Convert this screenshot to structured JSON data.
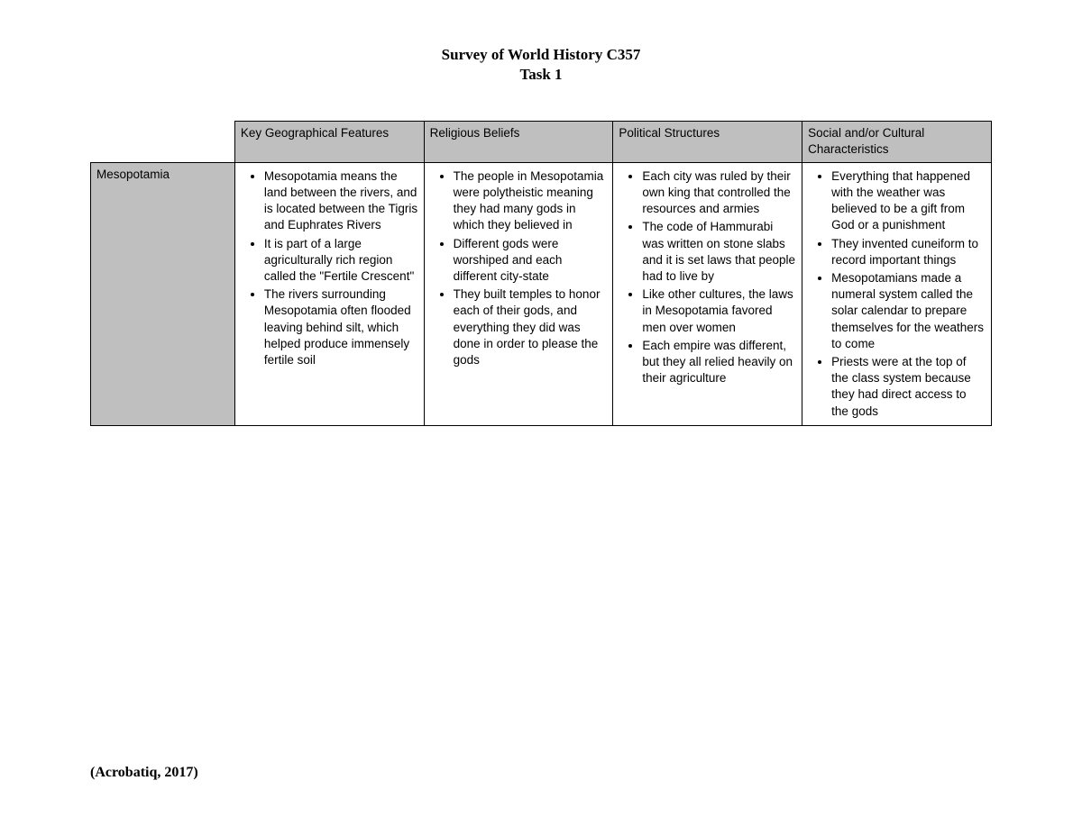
{
  "title": {
    "line1": "Survey of World History C357",
    "line2": "Task 1"
  },
  "table": {
    "headers": {
      "col1": "Key Geographical Features",
      "col2": "Religious Beliefs",
      "col3": "Political Structures",
      "col4": "Social and/or Cultural Characteristics"
    },
    "row": {
      "label": "Mesopotamia",
      "geo": [
        "Mesopotamia means the land between the rivers, and is located between the Tigris and Euphrates Rivers",
        "It is part of a large agriculturally rich region called the \"Fertile Crescent\"",
        "The rivers surrounding Mesopotamia often flooded leaving behind silt, which helped produce immensely fertile soil"
      ],
      "religion": [
        "The people in Mesopotamia were polytheistic meaning they had many gods in which they believed in",
        "Different gods were worshiped and each different city-state",
        "They built temples to honor each of their gods, and everything they did was done in order to please the gods"
      ],
      "political": [
        "Each city was ruled by their own king that controlled the resources and armies",
        "The code of Hammurabi was written on stone slabs and it is set laws that people had to live by",
        "Like other cultures, the laws in Mesopotamia favored men over women",
        "Each empire was different, but they all relied heavily on their agriculture"
      ],
      "social": [
        "Everything that happened with the weather was believed to be a gift from God or a punishment",
        "They invented cuneiform to record important things",
        "Mesopotamians made a numeral system called the solar calendar to prepare themselves for the weathers to come",
        "Priests were at the top of the class system because they had direct access to the gods"
      ]
    }
  },
  "citation": "(Acrobatiq, 2017)",
  "colors": {
    "header_bg": "#bfbfbf",
    "border": "#000000",
    "text": "#000000",
    "page_bg": "#ffffff"
  },
  "fonts": {
    "title_family": "Times New Roman",
    "title_weight": "bold",
    "title_size_pt": 13,
    "body_family": "Arial",
    "body_size_pt": 10
  }
}
